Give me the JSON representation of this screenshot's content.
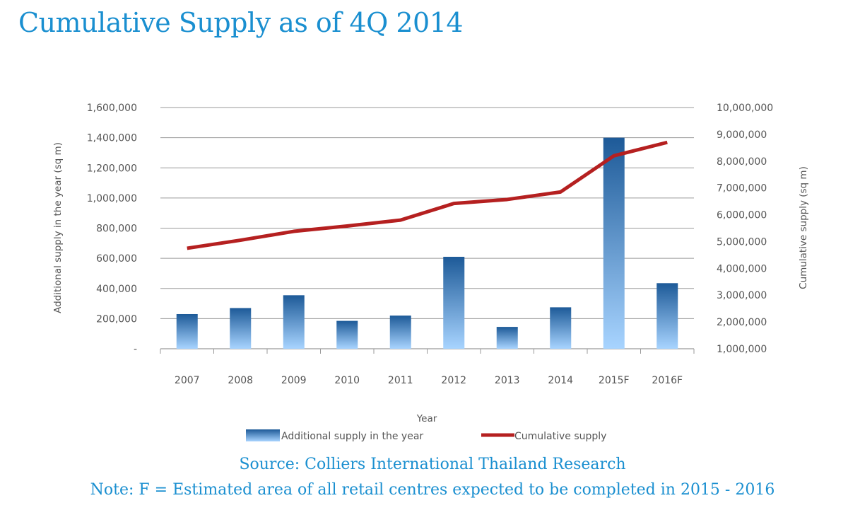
{
  "page": {
    "title": "Cumulative Supply as of 4Q 2014",
    "source": "Source: Colliers International Thailand Research",
    "note": "Note: F = Estimated area of all retail centres expected to be completed in 2015 - 2016"
  },
  "colors": {
    "title": "#1a8fd0",
    "bar_top": "#1d5a98",
    "bar_bottom": "#a8d4ff",
    "line": "#b52020",
    "grid": "#9a9a9a",
    "text": "#555555"
  },
  "chart_data": {
    "type": "bar",
    "categories": [
      "2007",
      "2008",
      "2009",
      "2010",
      "2011",
      "2012",
      "2013",
      "2014",
      "2015F",
      "2016F"
    ],
    "series": [
      {
        "name": "Additional supply in the year",
        "type": "bar",
        "axis": "left",
        "values": [
          230000,
          270000,
          355000,
          185000,
          220000,
          610000,
          145000,
          275000,
          1400000,
          435000
        ]
      },
      {
        "name": "Cumulative supply",
        "type": "line",
        "axis": "right",
        "values": [
          4750000,
          5050000,
          5380000,
          5580000,
          5800000,
          6420000,
          6570000,
          6850000,
          8200000,
          8700000
        ]
      }
    ],
    "xlabel": "Year",
    "ylabel": "Additional supply in the year (sq m)",
    "y2label": "Cumulative supply  (sq m)",
    "ylim": [
      0,
      1600000
    ],
    "y2lim": [
      1000000,
      10000000
    ],
    "yticks": [
      "-",
      "200,000",
      "400,000",
      "600,000",
      "800,000",
      "1,000,000",
      "1,200,000",
      "1,400,000",
      "1,600,000"
    ],
    "y2ticks": [
      "1,000,000",
      "2,000,000",
      "3,000,000",
      "4,000,000",
      "5,000,000",
      "6,000,000",
      "7,000,000",
      "8,000,000",
      "9,000,000",
      "10,000,000"
    ],
    "grid": true,
    "legend": "bottom"
  }
}
